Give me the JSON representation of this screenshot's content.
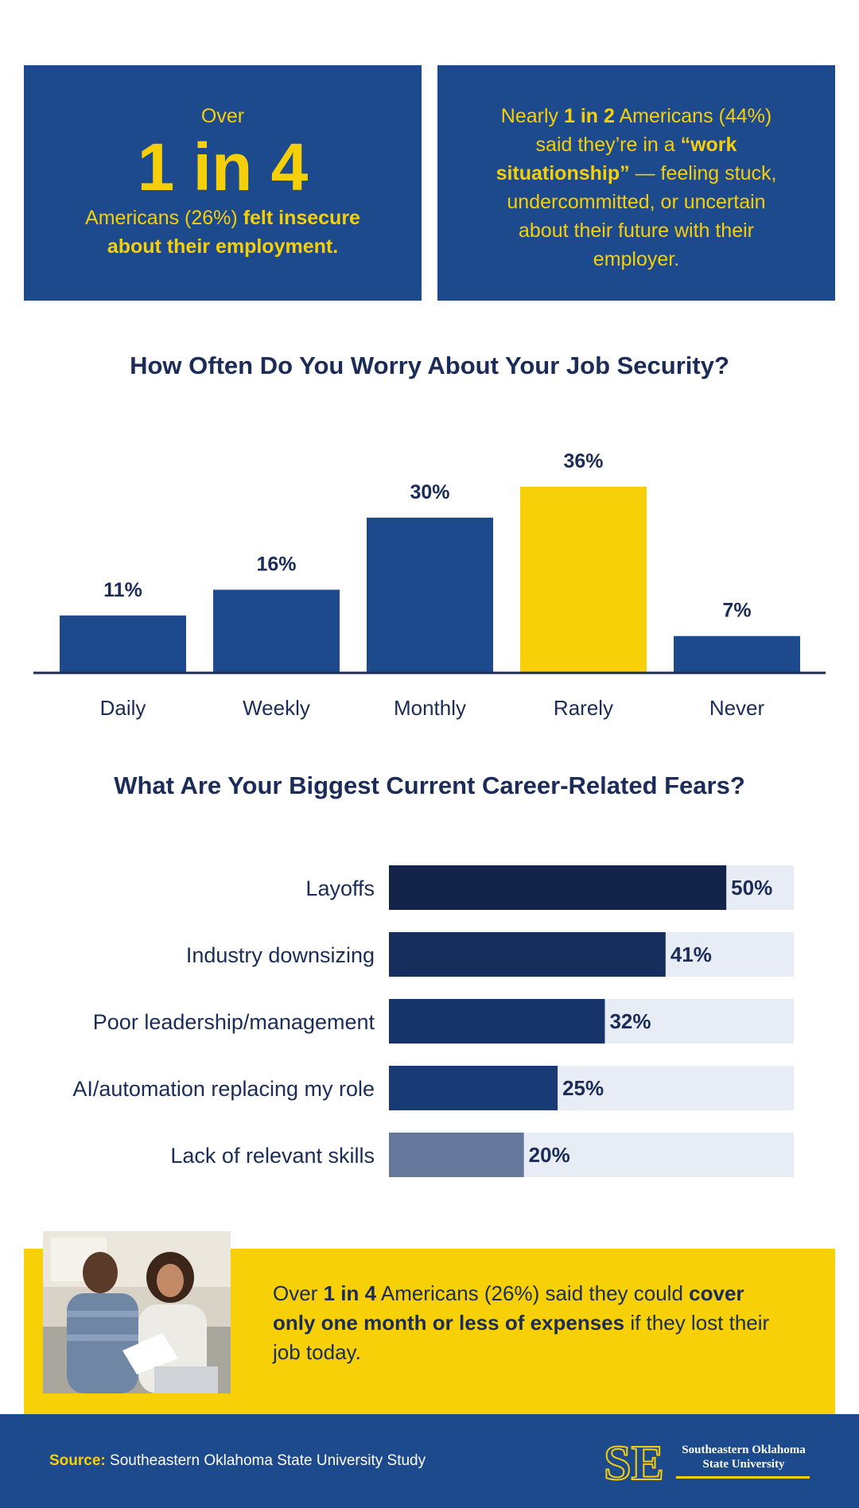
{
  "stat_left": {
    "line1": "Over",
    "big": "1 in 4",
    "line2_plain": "Americans (26%) ",
    "line2_bold": "felt insecure",
    "line3_bold": "about their employment."
  },
  "stat_right": {
    "p1": "Nearly ",
    "p1_bold": "1 in 2",
    "p2": " Americans (44%)",
    "p3": "said they’re in a ",
    "p3_bold": "“work",
    "p4_bold": "situationship”",
    "p4": " — feeling stuck,",
    "p5": "undercommitted, or uncertain",
    "p6": "about their future with their",
    "p7": "employer."
  },
  "chart_data": [
    {
      "type": "bar",
      "title": "How Often Do You Worry About Your Job Security?",
      "categories": [
        "Daily",
        "Weekly",
        "Monthly",
        "Rarely",
        "Never"
      ],
      "values": [
        11,
        16,
        30,
        36,
        7
      ],
      "labels": [
        "11%",
        "16%",
        "30%",
        "36%",
        "7%"
      ],
      "colors": [
        "#1c4a8d",
        "#1c4a8d",
        "#1c4a8d",
        "#f7d008",
        "#1c4a8d"
      ],
      "ylim": [
        0,
        36
      ],
      "grid": false
    },
    {
      "type": "bar",
      "orientation": "horizontal",
      "title": "What Are Your Biggest Current Career-Related Fears?",
      "categories": [
        "Layoffs",
        "Industry downsizing",
        "Poor leadership/management",
        "AI/automation replacing my role",
        "Lack of relevant skills"
      ],
      "values": [
        50,
        41,
        32,
        25,
        20
      ],
      "labels": [
        "50%",
        "41%",
        "32%",
        "25%",
        "20%"
      ],
      "colors": [
        "#13234a",
        "#152e5c",
        "#17346a",
        "#1a3a75",
        "#65789b"
      ],
      "track_color": "#e8edf5",
      "xlim": [
        0,
        60
      ],
      "grid": false
    }
  ],
  "callout": {
    "t1": "Over ",
    "t1_bold": "1 in 4",
    "t2": " Americans (26%) said they could ",
    "t2_bold": "cover only one month or less of expenses",
    "t3": " if they lost their job today."
  },
  "footer": {
    "source_label": "Source:",
    "source_text": " Southeastern Oklahoma State University Study",
    "logo_text": "SE",
    "university_line1": "Southeastern Oklahoma",
    "university_line2": "State University"
  },
  "colors": {
    "navy": "#1c4a8d",
    "dark_navy": "#1a2c57",
    "yellow": "#f7d008"
  }
}
